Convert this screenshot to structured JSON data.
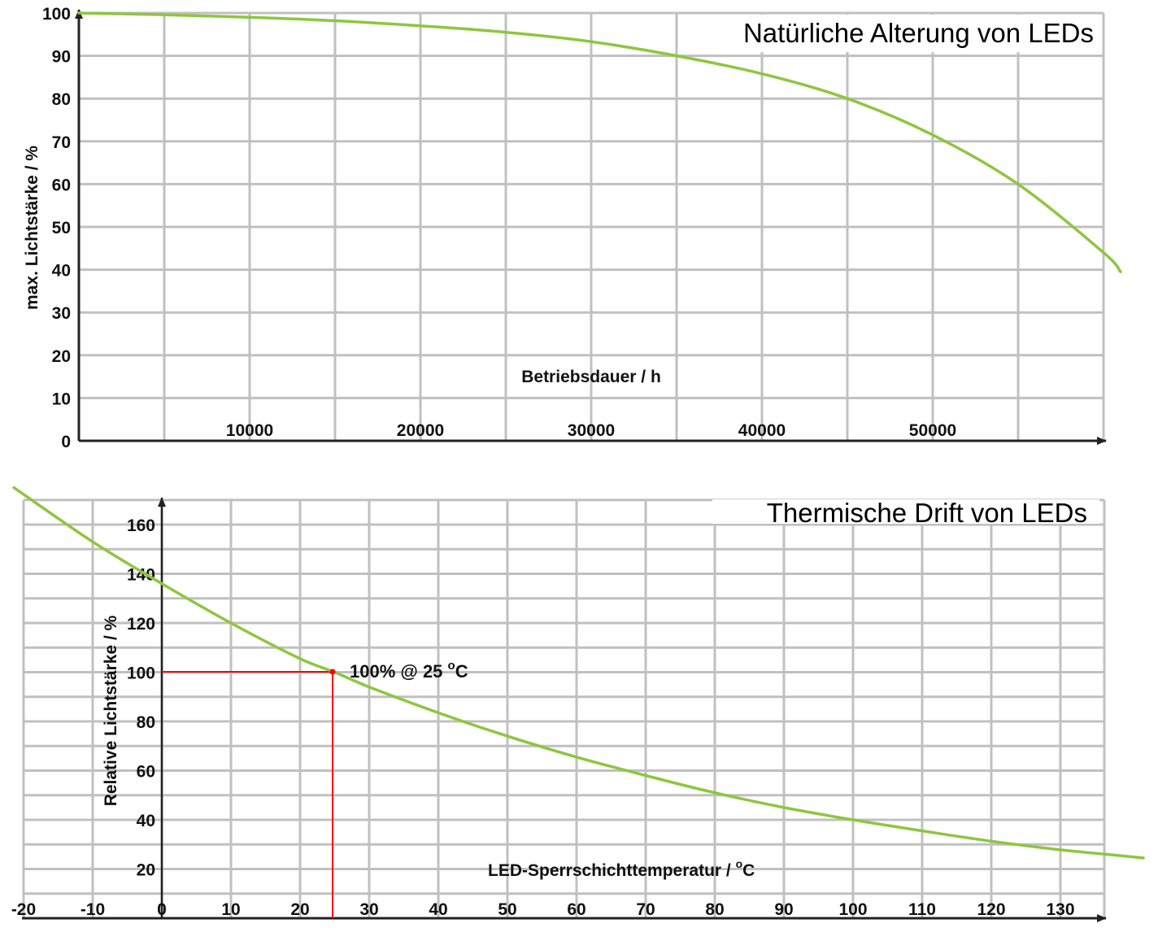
{
  "chart_data": [
    {
      "id": "aging",
      "type": "line",
      "title": "Natürliche Alterung von LEDs",
      "xlabel": "Betriebsdauer / h",
      "ylabel": "max. Lichtstärke / %",
      "xlim": [
        0,
        60000
      ],
      "ylim": [
        0,
        100
      ],
      "grid": true,
      "x_ticks": [
        10000,
        20000,
        30000,
        40000,
        50000
      ],
      "x_tick_labels": [
        "10000",
        "20000",
        "30000",
        "40000",
        "50000"
      ],
      "y_ticks": [
        0,
        10,
        20,
        30,
        40,
        50,
        60,
        70,
        80,
        90,
        100
      ],
      "y_tick_labels": [
        "0",
        "10",
        "20",
        "30",
        "40",
        "50",
        "60",
        "70",
        "80",
        "90",
        "100"
      ],
      "series": [
        {
          "name": "Lichtstärke",
          "color": "#8dc63f",
          "x": [
            0,
            5000,
            10000,
            15000,
            20000,
            25000,
            30000,
            35000,
            40000,
            45000,
            50000,
            55000,
            60000,
            61000
          ],
          "y": [
            100,
            99.6,
            99,
            98.2,
            97,
            95.5,
            93.3,
            90,
            85.8,
            80,
            71.5,
            60,
            44,
            39.5
          ]
        }
      ]
    },
    {
      "id": "thermal",
      "type": "line",
      "title": "Thermische Drift von LEDs",
      "xlabel": "LED-Sperrschichttemperatur /  °C",
      "xlabel_parts": {
        "text": "LED-Sperrschichttemperatur /  ",
        "sup": "o",
        "unit": "C"
      },
      "ylabel": "Relative Lichtstärke / %",
      "xlim": [
        -20,
        136.5
      ],
      "ylim": [
        0,
        170
      ],
      "grid": true,
      "x_ticks": [
        -20,
        -10,
        0,
        10,
        20,
        30,
        40,
        50,
        60,
        70,
        80,
        90,
        100,
        110,
        120,
        130
      ],
      "x_tick_labels": [
        "-20",
        "-10",
        "0",
        "10",
        "20",
        "30",
        "40",
        "50",
        "60",
        "70",
        "80",
        "90",
        "100",
        "110",
        "120",
        "130"
      ],
      "y_ticks": [
        20,
        40,
        60,
        80,
        100,
        120,
        140,
        160
      ],
      "y_tick_labels": [
        "20",
        "40",
        "60",
        "80",
        "100",
        "120",
        "140",
        "160"
      ],
      "series": [
        {
          "name": "Relative Lichtstärke",
          "color": "#8dc63f",
          "x": [
            -21.4,
            -10,
            0,
            10,
            20,
            25,
            30,
            40,
            50,
            60,
            70,
            80,
            90,
            100,
            110,
            120,
            130,
            136.5,
            142
          ],
          "y": [
            175,
            153,
            136,
            120,
            105.5,
            100,
            94,
            83.5,
            74,
            65.5,
            58,
            51,
            45,
            40,
            35.5,
            31.3,
            27.8,
            26,
            24.5
          ]
        }
      ],
      "annotations": [
        {
          "text": "100% @ 25 °C",
          "text_parts": {
            "text": "100% @ 25 ",
            "sup": "o",
            "unit": "C"
          },
          "x": 25,
          "y": 100,
          "marker_color": "#ff0000",
          "reference_lines": "horizontal from T=0 to 25 at 100%, vertical from 100% down to axis at T=25"
        }
      ]
    }
  ],
  "colors": {
    "curve": "#8dc63f",
    "grid": "#c0c0c0",
    "axis": "#222222",
    "reference": "#ff0000"
  }
}
